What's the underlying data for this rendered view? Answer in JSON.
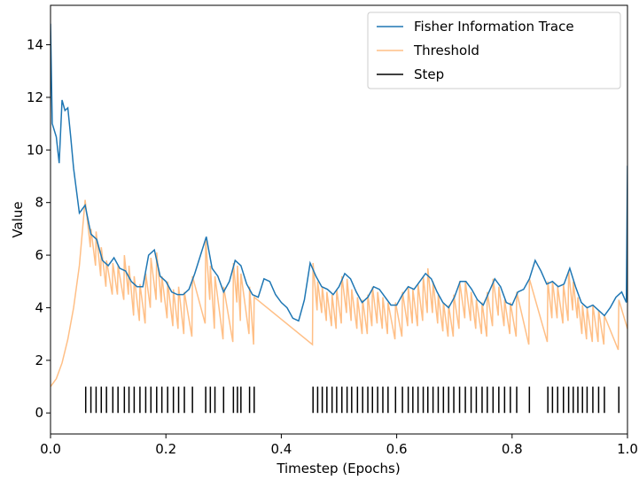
{
  "chart_data": {
    "type": "line",
    "xlabel": "Timestep (Epochs)",
    "ylabel": "Value",
    "xlim": [
      0,
      1
    ],
    "ylim": [
      -0.8,
      15.5
    ],
    "xticks": [
      {
        "value": 0,
        "label": "0.0"
      },
      0.2,
      0.4,
      0.6,
      0.8,
      {
        "value": 1,
        "label": "1.0"
      }
    ],
    "yticks": [
      0,
      2,
      4,
      6,
      8,
      10,
      12,
      14
    ],
    "legend": "upper right",
    "series": [
      {
        "name": "Fisher Information Trace",
        "color": "#1f77b4",
        "x": [
          0,
          0.003,
          0.01,
          0.015,
          0.02,
          0.025,
          0.03,
          0.035,
          0.04,
          0.05,
          0.06,
          0.07,
          0.08,
          0.09,
          0.1,
          0.11,
          0.12,
          0.13,
          0.14,
          0.15,
          0.16,
          0.17,
          0.18,
          0.19,
          0.2,
          0.21,
          0.22,
          0.23,
          0.24,
          0.25,
          0.26,
          0.27,
          0.28,
          0.29,
          0.3,
          0.31,
          0.32,
          0.33,
          0.34,
          0.35,
          0.36,
          0.37,
          0.38,
          0.39,
          0.4,
          0.41,
          0.42,
          0.43,
          0.44,
          0.45,
          0.46,
          0.47,
          0.48,
          0.49,
          0.5,
          0.51,
          0.52,
          0.53,
          0.54,
          0.55,
          0.56,
          0.57,
          0.58,
          0.59,
          0.6,
          0.61,
          0.62,
          0.63,
          0.64,
          0.65,
          0.66,
          0.67,
          0.68,
          0.69,
          0.7,
          0.71,
          0.72,
          0.73,
          0.74,
          0.75,
          0.76,
          0.77,
          0.78,
          0.79,
          0.8,
          0.81,
          0.82,
          0.83,
          0.84,
          0.85,
          0.86,
          0.87,
          0.88,
          0.89,
          0.9,
          0.91,
          0.92,
          0.93,
          0.94,
          0.95,
          0.96,
          0.97,
          0.98,
          0.99,
          0.998,
          1.0
        ],
        "values": [
          14.8,
          11.0,
          10.5,
          9.5,
          11.9,
          11.5,
          11.6,
          10.5,
          9.3,
          7.6,
          7.9,
          6.8,
          6.6,
          5.8,
          5.6,
          5.9,
          5.5,
          5.4,
          5.0,
          4.8,
          4.8,
          6.0,
          6.2,
          5.2,
          5.0,
          4.6,
          4.5,
          4.5,
          4.7,
          5.3,
          6.0,
          6.7,
          5.5,
          5.2,
          4.6,
          5.0,
          5.8,
          5.6,
          4.9,
          4.5,
          4.4,
          5.1,
          5.0,
          4.5,
          4.2,
          4.0,
          3.6,
          3.5,
          4.3,
          5.7,
          5.2,
          4.8,
          4.7,
          4.5,
          4.8,
          5.3,
          5.1,
          4.6,
          4.2,
          4.4,
          4.8,
          4.7,
          4.4,
          4.1,
          4.1,
          4.5,
          4.8,
          4.7,
          5.0,
          5.3,
          5.1,
          4.6,
          4.2,
          4.0,
          4.4,
          5.0,
          5.0,
          4.7,
          4.3,
          4.1,
          4.6,
          5.1,
          4.8,
          4.2,
          4.1,
          4.6,
          4.7,
          5.1,
          5.8,
          5.4,
          4.9,
          5.0,
          4.8,
          4.9,
          5.5,
          4.8,
          4.2,
          4.0,
          4.1,
          3.9,
          3.7,
          4.0,
          4.4,
          4.6,
          4.2,
          9.4
        ]
      },
      {
        "name": "Threshold",
        "color": "#ffbf86",
        "x": [
          0,
          0.01,
          0.02,
          0.03,
          0.04,
          0.05,
          0.06,
          0.069,
          0.07,
          0.078,
          0.079,
          0.087,
          0.088,
          0.096,
          0.097,
          0.107,
          0.108,
          0.116,
          0.117,
          0.127,
          0.128,
          0.135,
          0.136,
          0.144,
          0.145,
          0.154,
          0.155,
          0.164,
          0.165,
          0.173,
          0.174,
          0.183,
          0.184,
          0.192,
          0.193,
          0.202,
          0.203,
          0.212,
          0.213,
          0.221,
          0.222,
          0.231,
          0.232,
          0.245,
          0.246,
          0.268,
          0.269,
          0.276,
          0.277,
          0.284,
          0.285,
          0.299,
          0.3,
          0.316,
          0.317,
          0.323,
          0.324,
          0.329,
          0.33,
          0.344,
          0.345,
          0.352,
          0.353,
          0.454,
          0.455,
          0.462,
          0.463,
          0.47,
          0.471,
          0.478,
          0.479,
          0.487,
          0.488,
          0.495,
          0.496,
          0.504,
          0.505,
          0.513,
          0.514,
          0.521,
          0.522,
          0.531,
          0.532,
          0.54,
          0.541,
          0.549,
          0.55,
          0.557,
          0.558,
          0.566,
          0.567,
          0.575,
          0.576,
          0.584,
          0.585,
          0.597,
          0.598,
          0.609,
          0.61,
          0.619,
          0.62,
          0.627,
          0.628,
          0.636,
          0.637,
          0.645,
          0.646,
          0.653,
          0.654,
          0.662,
          0.663,
          0.671,
          0.672,
          0.68,
          0.681,
          0.689,
          0.69,
          0.698,
          0.699,
          0.708,
          0.709,
          0.718,
          0.719,
          0.728,
          0.729,
          0.737,
          0.738,
          0.747,
          0.748,
          0.756,
          0.757,
          0.766,
          0.767,
          0.776,
          0.777,
          0.786,
          0.787,
          0.796,
          0.797,
          0.807,
          0.808,
          0.829,
          0.83,
          0.861,
          0.862,
          0.869,
          0.87,
          0.878,
          0.879,
          0.888,
          0.889,
          0.897,
          0.898,
          0.905,
          0.906,
          0.913,
          0.914,
          0.921,
          0.922,
          0.929,
          0.93,
          0.939,
          0.94,
          0.949,
          0.95,
          0.959,
          0.96,
          0.984,
          0.985,
          1.0
        ],
        "values": [
          1.0,
          1.3,
          1.9,
          2.8,
          4.0,
          5.6,
          8.1,
          6.3,
          7.0,
          5.6,
          6.9,
          5.2,
          6.3,
          4.8,
          5.8,
          4.5,
          5.7,
          4.5,
          5.6,
          4.3,
          6.0,
          4.5,
          5.6,
          3.7,
          5.2,
          3.5,
          4.9,
          3.4,
          5.3,
          4.0,
          5.9,
          4.3,
          6.1,
          4.2,
          5.2,
          3.6,
          5.0,
          3.3,
          4.7,
          3.2,
          4.8,
          3.0,
          4.6,
          2.9,
          5.2,
          3.4,
          6.6,
          4.3,
          5.6,
          3.2,
          5.2,
          2.8,
          4.8,
          2.7,
          5.7,
          4.2,
          5.6,
          3.5,
          5.3,
          3.0,
          4.8,
          2.6,
          4.4,
          2.6,
          5.7,
          3.9,
          5.0,
          3.8,
          4.8,
          3.5,
          4.6,
          3.3,
          4.5,
          3.2,
          4.7,
          3.4,
          5.2,
          3.8,
          5.1,
          3.5,
          4.7,
          3.2,
          4.4,
          3.0,
          4.3,
          3.0,
          4.5,
          3.3,
          4.8,
          3.4,
          4.6,
          3.2,
          4.4,
          3.0,
          4.2,
          2.8,
          4.2,
          2.9,
          4.6,
          3.3,
          4.8,
          3.4,
          4.7,
          3.3,
          4.9,
          3.5,
          5.2,
          3.8,
          5.5,
          3.8,
          5.0,
          3.4,
          4.5,
          3.1,
          4.2,
          2.9,
          4.1,
          2.9,
          4.5,
          3.2,
          5.0,
          3.6,
          5.0,
          3.5,
          4.6,
          3.2,
          4.3,
          3.0,
          4.2,
          2.9,
          4.6,
          3.3,
          5.1,
          3.7,
          4.8,
          3.3,
          4.3,
          3.0,
          4.2,
          2.9,
          4.6,
          2.6,
          5.1,
          2.7,
          5.0,
          3.6,
          5.0,
          3.6,
          4.8,
          3.4,
          4.9,
          3.5,
          5.4,
          3.9,
          5.0,
          3.6,
          4.4,
          3.0,
          4.1,
          2.8,
          4.0,
          2.7,
          4.1,
          2.7,
          3.9,
          2.6,
          3.7,
          2.4,
          4.3,
          3.2
        ]
      },
      {
        "name": "Step",
        "color": "#000000",
        "line_range": [
          0,
          1
        ],
        "x": [
          0.061,
          0.07,
          0.079,
          0.088,
          0.097,
          0.108,
          0.117,
          0.128,
          0.136,
          0.145,
          0.155,
          0.165,
          0.174,
          0.184,
          0.193,
          0.203,
          0.213,
          0.222,
          0.232,
          0.246,
          0.269,
          0.277,
          0.285,
          0.3,
          0.317,
          0.324,
          0.33,
          0.345,
          0.353,
          0.455,
          0.463,
          0.471,
          0.479,
          0.488,
          0.496,
          0.505,
          0.514,
          0.522,
          0.532,
          0.541,
          0.55,
          0.558,
          0.567,
          0.576,
          0.585,
          0.598,
          0.61,
          0.62,
          0.628,
          0.637,
          0.646,
          0.654,
          0.663,
          0.672,
          0.681,
          0.69,
          0.699,
          0.709,
          0.719,
          0.729,
          0.738,
          0.748,
          0.757,
          0.767,
          0.777,
          0.787,
          0.797,
          0.808,
          0.83,
          0.862,
          0.87,
          0.879,
          0.889,
          0.898,
          0.906,
          0.914,
          0.922,
          0.93,
          0.94,
          0.95,
          0.96,
          0.985
        ]
      }
    ]
  }
}
